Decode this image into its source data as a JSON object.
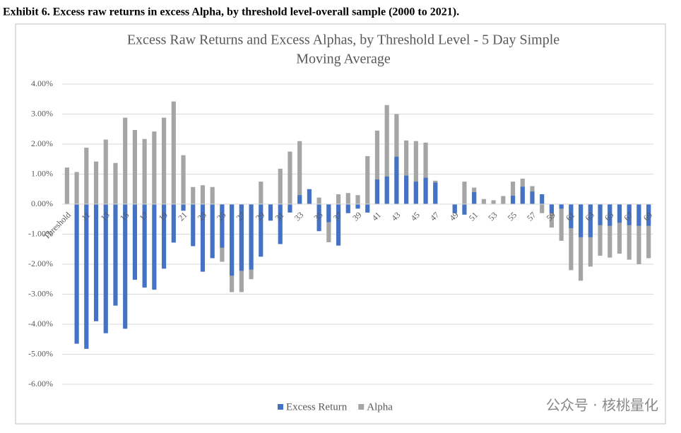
{
  "header": {
    "title": "Exhibit 6. Excess raw returns in excess Alpha, by threshold level-overall sample (2000 to 2021)."
  },
  "watermark": "公众号 · 核桃量化",
  "chart_data": {
    "type": "bar",
    "title": [
      "Excess Raw Returns and Excess Alphas, by Threshold Level - 5 Day Simple",
      "Moving Average"
    ],
    "categories": [
      "Threshold",
      null,
      "11",
      null,
      "13",
      null,
      "15",
      null,
      "17",
      null,
      "19",
      null,
      "21",
      null,
      "23",
      null,
      "25",
      null,
      "27",
      null,
      "29",
      null,
      "31",
      null,
      "33",
      null,
      "35",
      null,
      "37",
      null,
      "39",
      null,
      "41",
      null,
      "43",
      null,
      "45",
      null,
      "47",
      null,
      "49",
      null,
      "51",
      null,
      "53",
      null,
      "55",
      null,
      "57",
      null,
      "59",
      null,
      "61",
      null,
      "63",
      null,
      "65",
      null,
      "67",
      null,
      "69"
    ],
    "series": [
      {
        "name": "Alpha",
        "color": "#a5a5a5",
        "values": [
          1.22,
          1.07,
          1.88,
          1.42,
          2.15,
          1.37,
          2.88,
          2.47,
          2.17,
          2.42,
          2.88,
          3.42,
          1.63,
          0.57,
          0.63,
          0.57,
          -1.92,
          -2.93,
          -2.93,
          -2.5,
          0.75,
          0,
          1.18,
          1.75,
          2.1,
          0,
          0.22,
          -1.27,
          0.33,
          0.37,
          0.3,
          1.6,
          2.45,
          3.3,
          3.0,
          2.12,
          2.1,
          2.05,
          0.78,
          0,
          -0.3,
          0.75,
          0.55,
          0.17,
          0.13,
          0.27,
          0.75,
          0.85,
          0.6,
          -0.3,
          -0.78,
          -1.22,
          -2.2,
          -2.55,
          -2.08,
          -1.72,
          -1.78,
          -1.65,
          -1.85,
          -2.0,
          -1.8
        ]
      },
      {
        "name": "Excess Return",
        "color": "#4472c4",
        "values": [
          0,
          -4.65,
          -4.82,
          -3.9,
          -4.3,
          -3.38,
          -4.15,
          -2.52,
          -2.78,
          -2.85,
          -2.15,
          -1.28,
          -0.22,
          -1.4,
          -2.25,
          -1.8,
          -1.45,
          -2.38,
          -2.22,
          -2.18,
          -1.75,
          -0.55,
          -1.33,
          -0.28,
          0.3,
          0.5,
          -0.9,
          -0.6,
          -1.38,
          -0.3,
          -0.15,
          -0.28,
          0.82,
          0.92,
          1.58,
          0.95,
          0.75,
          0.88,
          0.72,
          0,
          -0.3,
          -0.35,
          0.4,
          0,
          0,
          0,
          0.28,
          0.58,
          0.42,
          0.33,
          -0.3,
          -0.15,
          -0.8,
          -1.1,
          -1.1,
          -0.7,
          -0.72,
          -0.62,
          -0.7,
          -0.72,
          -0.72
        ]
      }
    ],
    "legend_order": [
      1,
      0
    ],
    "ylim": [
      -6,
      4
    ],
    "yticks": [
      {
        "value": -6,
        "label": "-6.00%"
      },
      {
        "value": -5,
        "label": "-5.00%"
      },
      {
        "value": -4,
        "label": "-4.00%"
      },
      {
        "value": -3,
        "label": "-3.00%"
      },
      {
        "value": -2,
        "label": "-2.00%"
      },
      {
        "value": -1,
        "label": "-1.00%"
      },
      {
        "value": 0,
        "label": "0.00%"
      },
      {
        "value": 1,
        "label": "1.00%"
      },
      {
        "value": 2,
        "label": "2.00%"
      },
      {
        "value": 3,
        "label": "3.00%"
      },
      {
        "value": 4,
        "label": "4.00%"
      }
    ],
    "grid": true,
    "legend": "bottom"
  }
}
